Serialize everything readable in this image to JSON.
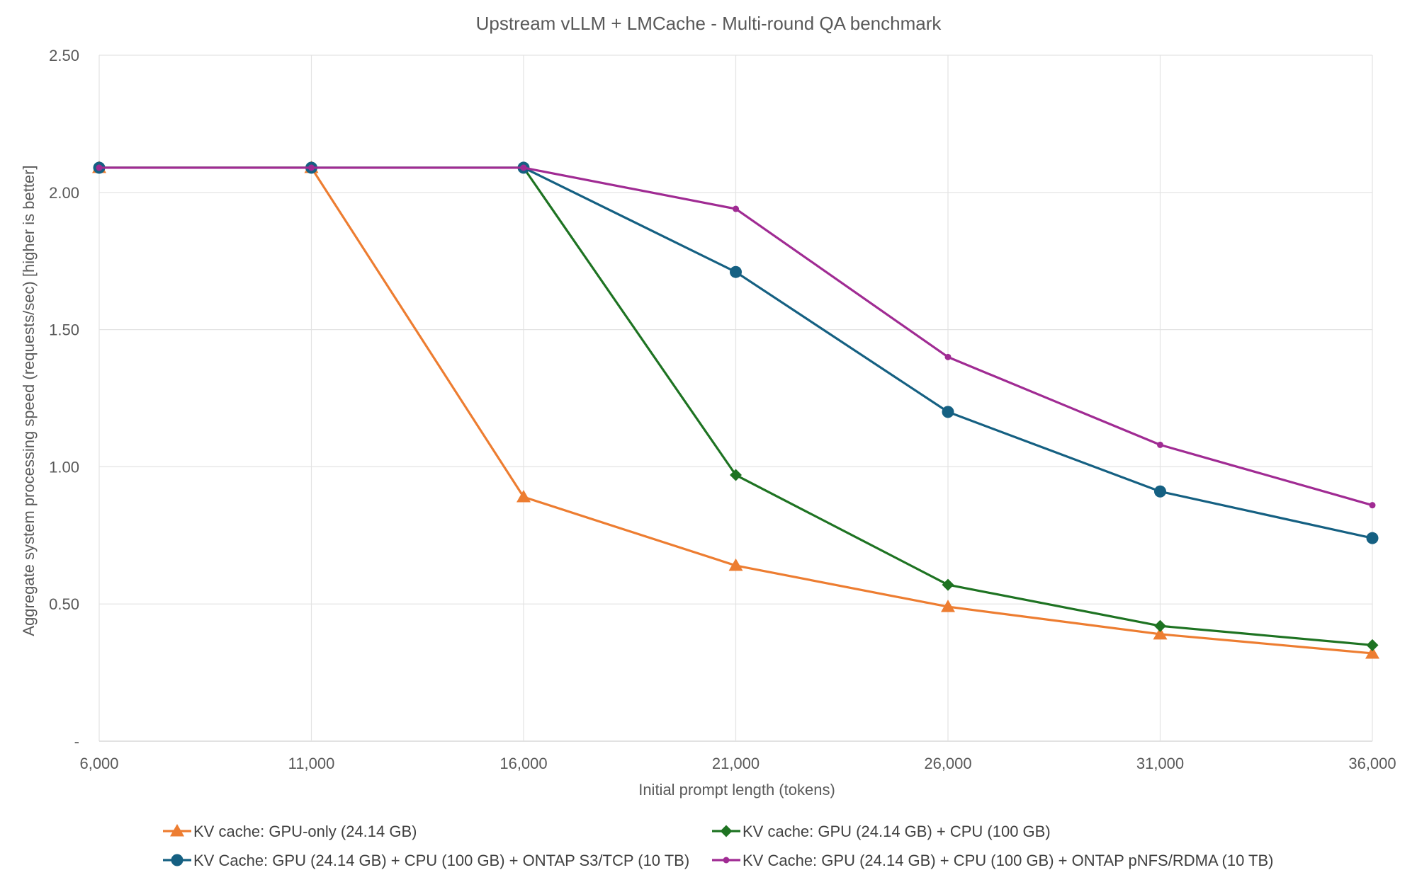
{
  "chart_data": {
    "type": "line",
    "title": "Upstream vLLM + LMCache - Multi-round QA benchmark",
    "xlabel": "Initial prompt length (tokens)",
    "ylabel": "Aggregate system processing speed (requests/sec) [higher is better]",
    "x": [
      6000,
      11000,
      16000,
      21000,
      26000,
      31000,
      36000
    ],
    "x_tick_labels": [
      "6,000",
      "11,000",
      "16,000",
      "21,000",
      "26,000",
      "31,000",
      "36,000"
    ],
    "ylim": [
      0,
      2.5
    ],
    "y_ticks": [
      0,
      0.5,
      1.0,
      1.5,
      2.0,
      2.5
    ],
    "y_tick_labels": [
      "-",
      "0.50",
      "1.00",
      "1.50",
      "2.00",
      "2.50"
    ],
    "grid": true,
    "legend_position": "bottom",
    "series": [
      {
        "name": "KV cache: GPU-only (24.14 GB)",
        "color": "#ED7D31",
        "marker": "triangle",
        "values": [
          2.09,
          2.09,
          0.89,
          0.64,
          0.49,
          0.39,
          0.32
        ]
      },
      {
        "name": "KV cache: GPU (24.14 GB) + CPU (100 GB)",
        "color": "#1E7322",
        "marker": "diamond",
        "values": [
          2.09,
          2.09,
          2.09,
          0.97,
          0.57,
          0.42,
          0.35
        ]
      },
      {
        "name": "KV Cache: GPU (24.14 GB) + CPU (100 GB) + ONTAP S3/TCP (10 TB)",
        "color": "#156082",
        "marker": "circle",
        "values": [
          2.09,
          2.09,
          2.09,
          1.71,
          1.2,
          0.91,
          0.74
        ]
      },
      {
        "name": "KV Cache: GPU (24.14 GB) + CPU (100 GB) + ONTAP pNFS/RDMA (10 TB)",
        "color": "#A02B93",
        "marker": "small-circle",
        "values": [
          2.09,
          2.09,
          2.09,
          1.94,
          1.4,
          1.08,
          0.86
        ]
      }
    ]
  }
}
